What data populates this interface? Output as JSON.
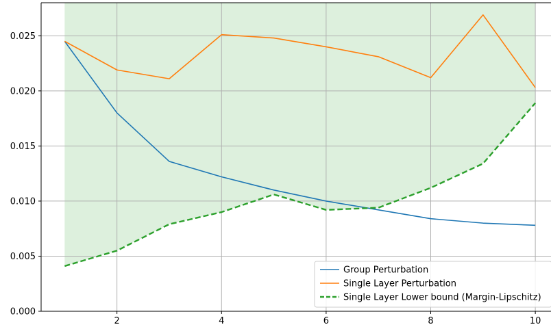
{
  "chart_data": {
    "type": "line",
    "title": "",
    "xlabel": "",
    "ylabel": "",
    "xlim": [
      0.55,
      10.3
    ],
    "ylim": [
      0.0,
      0.028
    ],
    "grid": true,
    "legend_position": "lower-right",
    "x_ticks": [
      2,
      4,
      6,
      8,
      10
    ],
    "x_tick_labels": [
      "2",
      "4",
      "6",
      "8",
      "10"
    ],
    "y_ticks": [
      0.0,
      0.005,
      0.01,
      0.015,
      0.02,
      0.025
    ],
    "y_tick_labels": [
      "0.000",
      "0.005",
      "0.010",
      "0.015",
      "0.020",
      "0.025"
    ],
    "x": [
      1,
      2,
      3,
      4,
      5,
      6,
      7,
      8,
      9,
      10
    ],
    "series": [
      {
        "name": "Group Perturbation",
        "color": "#1f77b4",
        "style": "solid",
        "values": [
          0.0245,
          0.018,
          0.0136,
          0.0122,
          0.011,
          0.01,
          0.0092,
          0.0084,
          0.008,
          0.0078
        ]
      },
      {
        "name": "Single Layer Perturbation",
        "color": "#ff7f0e",
        "style": "solid",
        "values": [
          0.0245,
          0.0219,
          0.0211,
          0.0251,
          0.0248,
          0.024,
          0.0231,
          0.0212,
          0.0269,
          0.0203
        ]
      },
      {
        "name": "Single Layer Lower bound (Margin-Lipschitz)",
        "color": "#2ca02c",
        "style": "dashed",
        "values": [
          0.0041,
          0.0055,
          0.0079,
          0.009,
          0.0106,
          0.0092,
          0.0094,
          0.0112,
          0.0134,
          0.0189
        ]
      }
    ],
    "fill_between": {
      "lower_series": "Single Layer Lower bound (Margin-Lipschitz)",
      "upper": 0.028,
      "color": "#2ca02c",
      "opacity": 0.16
    }
  }
}
